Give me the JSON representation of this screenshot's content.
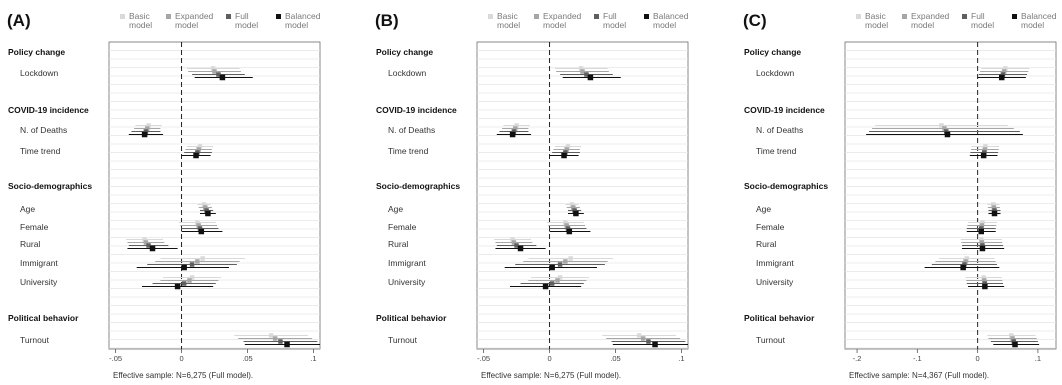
{
  "legend": [
    {
      "label": "Basic model",
      "color": "#d9d9d9"
    },
    {
      "label": "Expanded model",
      "color": "#a6a6a6"
    },
    {
      "label": "Full model",
      "color": "#5f5f5f"
    },
    {
      "label": "Balanced model",
      "color": "#111111"
    }
  ],
  "sections": [
    "Policy change",
    "COVID-19 incidence",
    "Socio-demographics",
    "Political behavior"
  ],
  "chart_data": [
    {
      "type": "dot-and-whisker",
      "panel": "(A)",
      "footnote": "Effective sample: N=6,275 (Full model).",
      "xlim": [
        -0.055,
        0.105
      ],
      "xticks": [
        {
          "v": -0.05,
          "label": "-.05"
        },
        {
          "v": 0,
          "label": "0"
        },
        {
          "v": 0.05,
          "label": ".05"
        },
        {
          "v": 0.1,
          "label": ".1"
        }
      ],
      "grid": true,
      "rows": [
        {
          "section": "Policy change",
          "label": "Lockdown",
          "est": [
            0.024,
            0.025,
            0.028,
            0.031
          ],
          "lo": [
            0.004,
            0.005,
            0.008,
            0.01
          ],
          "hi": [
            0.044,
            0.045,
            0.048,
            0.054
          ]
        },
        {
          "section": "COVID-19 incidence",
          "label": "N. of Deaths",
          "est": [
            -0.025,
            -0.026,
            -0.027,
            -0.028
          ],
          "lo": [
            -0.035,
            -0.036,
            -0.038,
            -0.04
          ],
          "hi": [
            -0.015,
            -0.016,
            -0.016,
            -0.014
          ]
        },
        {
          "section": "COVID-19 incidence",
          "label": "Time trend",
          "est": [
            0.014,
            0.013,
            0.012,
            0.011
          ],
          "lo": [
            0.004,
            0.003,
            0.002,
            0.0
          ],
          "hi": [
            0.024,
            0.023,
            0.023,
            0.022
          ]
        },
        {
          "section": "Socio-demographics",
          "label": "Age",
          "est": [
            0.017,
            0.018,
            0.019,
            0.02
          ],
          "lo": [
            0.012,
            0.013,
            0.014,
            0.014
          ],
          "hi": [
            0.022,
            0.023,
            0.024,
            0.026
          ]
        },
        {
          "section": "Socio-demographics",
          "label": "Female",
          "est": [
            0.012,
            0.013,
            0.014,
            0.015
          ],
          "lo": [
            -0.002,
            -0.001,
            0.0,
            0.0
          ],
          "hi": [
            0.026,
            0.027,
            0.028,
            0.031
          ]
        },
        {
          "section": "Socio-demographics",
          "label": "Rural",
          "est": [
            -0.028,
            -0.027,
            -0.025,
            -0.022
          ],
          "lo": [
            -0.042,
            -0.041,
            -0.04,
            -0.041
          ],
          "hi": [
            -0.014,
            -0.013,
            -0.01,
            -0.003
          ]
        },
        {
          "section": "Socio-demographics",
          "label": "Immigrant",
          "est": [
            0.016,
            0.012,
            0.008,
            0.002
          ],
          "lo": [
            -0.016,
            -0.02,
            -0.026,
            -0.034
          ],
          "hi": [
            0.048,
            0.044,
            0.042,
            0.036
          ]
        },
        {
          "section": "Socio-demographics",
          "label": "University",
          "est": [
            0.008,
            0.006,
            0.002,
            -0.003
          ],
          "lo": [
            -0.014,
            -0.016,
            -0.022,
            -0.03
          ],
          "hi": [
            0.03,
            0.028,
            0.026,
            0.024
          ]
        },
        {
          "section": "Political behavior",
          "label": "Turnout",
          "est": [
            0.068,
            0.071,
            0.075,
            0.08
          ],
          "lo": [
            0.04,
            0.043,
            0.047,
            0.048
          ],
          "hi": [
            0.096,
            0.099,
            0.103,
            0.105
          ]
        }
      ]
    },
    {
      "type": "dot-and-whisker",
      "panel": "(B)",
      "footnote": "Effective sample: N=6,275 (Full model).",
      "xlim": [
        -0.055,
        0.105
      ],
      "xticks": [
        {
          "v": -0.05,
          "label": "-.05"
        },
        {
          "v": 0,
          "label": "0"
        },
        {
          "v": 0.05,
          "label": ".05"
        },
        {
          "v": 0.1,
          "label": ".1"
        }
      ],
      "grid": true,
      "rows": [
        {
          "section": "Policy change",
          "label": "Lockdown",
          "est": [
            0.024,
            0.025,
            0.028,
            0.031
          ],
          "lo": [
            0.004,
            0.005,
            0.008,
            0.01
          ],
          "hi": [
            0.044,
            0.045,
            0.048,
            0.054
          ]
        },
        {
          "section": "COVID-19 incidence",
          "label": "N. of Deaths",
          "est": [
            -0.025,
            -0.026,
            -0.027,
            -0.028
          ],
          "lo": [
            -0.035,
            -0.036,
            -0.038,
            -0.04
          ],
          "hi": [
            -0.015,
            -0.016,
            -0.016,
            -0.014
          ]
        },
        {
          "section": "COVID-19 incidence",
          "label": "Time trend",
          "est": [
            0.014,
            0.013,
            0.012,
            0.011
          ],
          "lo": [
            0.004,
            0.003,
            0.002,
            0.0
          ],
          "hi": [
            0.024,
            0.023,
            0.023,
            0.022
          ]
        },
        {
          "section": "Socio-demographics",
          "label": "Age",
          "est": [
            0.017,
            0.018,
            0.019,
            0.02
          ],
          "lo": [
            0.012,
            0.013,
            0.014,
            0.014
          ],
          "hi": [
            0.022,
            0.023,
            0.024,
            0.026
          ]
        },
        {
          "section": "Socio-demographics",
          "label": "Female",
          "est": [
            0.012,
            0.013,
            0.014,
            0.015
          ],
          "lo": [
            -0.002,
            -0.001,
            0.0,
            0.0
          ],
          "hi": [
            0.026,
            0.027,
            0.028,
            0.031
          ]
        },
        {
          "section": "Socio-demographics",
          "label": "Rural",
          "est": [
            -0.028,
            -0.027,
            -0.025,
            -0.022
          ],
          "lo": [
            -0.042,
            -0.041,
            -0.04,
            -0.041
          ],
          "hi": [
            -0.014,
            -0.013,
            -0.01,
            -0.003
          ]
        },
        {
          "section": "Socio-demographics",
          "label": "Immigrant",
          "est": [
            0.016,
            0.012,
            0.008,
            0.002
          ],
          "lo": [
            -0.016,
            -0.02,
            -0.026,
            -0.034
          ],
          "hi": [
            0.048,
            0.044,
            0.042,
            0.036
          ]
        },
        {
          "section": "Socio-demographics",
          "label": "University",
          "est": [
            0.008,
            0.006,
            0.002,
            -0.003
          ],
          "lo": [
            -0.014,
            -0.016,
            -0.022,
            -0.03
          ],
          "hi": [
            0.03,
            0.028,
            0.026,
            0.024
          ]
        },
        {
          "section": "Political behavior",
          "label": "Turnout",
          "est": [
            0.068,
            0.071,
            0.075,
            0.08
          ],
          "lo": [
            0.04,
            0.043,
            0.047,
            0.048
          ],
          "hi": [
            0.096,
            0.099,
            0.103,
            0.105
          ]
        }
      ]
    },
    {
      "type": "dot-and-whisker",
      "panel": "(C)",
      "footnote": "Effective sample: N=4,367 (Full model).",
      "xlim": [
        -0.22,
        0.13
      ],
      "xticks": [
        {
          "v": -0.2,
          "label": "-.2"
        },
        {
          "v": -0.1,
          "label": "-.1"
        },
        {
          "v": 0,
          "label": "0"
        },
        {
          "v": 0.1,
          "label": ".1"
        }
      ],
      "grid": true,
      "rows": [
        {
          "section": "Policy change",
          "label": "Lockdown",
          "est": [
            0.046,
            0.044,
            0.042,
            0.04
          ],
          "lo": [
            0.006,
            0.004,
            0.002,
            0.0
          ],
          "hi": [
            0.086,
            0.084,
            0.082,
            0.08
          ]
        },
        {
          "section": "COVID-19 incidence",
          "label": "N. of Deaths",
          "est": [
            -0.06,
            -0.055,
            -0.052,
            -0.05
          ],
          "lo": [
            -0.17,
            -0.175,
            -0.18,
            -0.185
          ],
          "hi": [
            0.05,
            0.06,
            0.07,
            0.075
          ]
        },
        {
          "section": "COVID-19 incidence",
          "label": "Time trend",
          "est": [
            0.013,
            0.012,
            0.011,
            0.01
          ],
          "lo": [
            -0.01,
            -0.011,
            -0.012,
            -0.013
          ],
          "hi": [
            0.036,
            0.035,
            0.034,
            0.033
          ]
        },
        {
          "section": "Socio-demographics",
          "label": "Age",
          "est": [
            0.026,
            0.027,
            0.028,
            0.028
          ],
          "lo": [
            0.016,
            0.017,
            0.018,
            0.018
          ],
          "hi": [
            0.036,
            0.037,
            0.038,
            0.038
          ]
        },
        {
          "section": "Socio-demographics",
          "label": "Female",
          "est": [
            0.008,
            0.007,
            0.006,
            0.006
          ],
          "lo": [
            -0.016,
            -0.017,
            -0.018,
            -0.018
          ],
          "hi": [
            0.032,
            0.031,
            0.03,
            0.03
          ]
        },
        {
          "section": "Socio-demographics",
          "label": "Rural",
          "est": [
            0.006,
            0.007,
            0.008,
            0.008
          ],
          "lo": [
            -0.028,
            -0.027,
            -0.026,
            -0.026
          ],
          "hi": [
            0.04,
            0.041,
            0.042,
            0.044
          ]
        },
        {
          "section": "Socio-demographics",
          "label": "Immigrant",
          "est": [
            -0.018,
            -0.02,
            -0.022,
            -0.024
          ],
          "lo": [
            -0.064,
            -0.07,
            -0.076,
            -0.088
          ],
          "hi": [
            0.028,
            0.03,
            0.032,
            0.036
          ]
        },
        {
          "section": "Socio-demographics",
          "label": "University",
          "est": [
            0.01,
            0.011,
            0.012,
            0.012
          ],
          "lo": [
            -0.02,
            -0.019,
            -0.018,
            -0.016
          ],
          "hi": [
            0.04,
            0.041,
            0.042,
            0.044
          ]
        },
        {
          "section": "Political behavior",
          "label": "Turnout",
          "est": [
            0.056,
            0.058,
            0.06,
            0.062
          ],
          "lo": [
            0.016,
            0.018,
            0.022,
            0.026
          ],
          "hi": [
            0.096,
            0.098,
            0.1,
            0.102
          ]
        }
      ]
    }
  ]
}
